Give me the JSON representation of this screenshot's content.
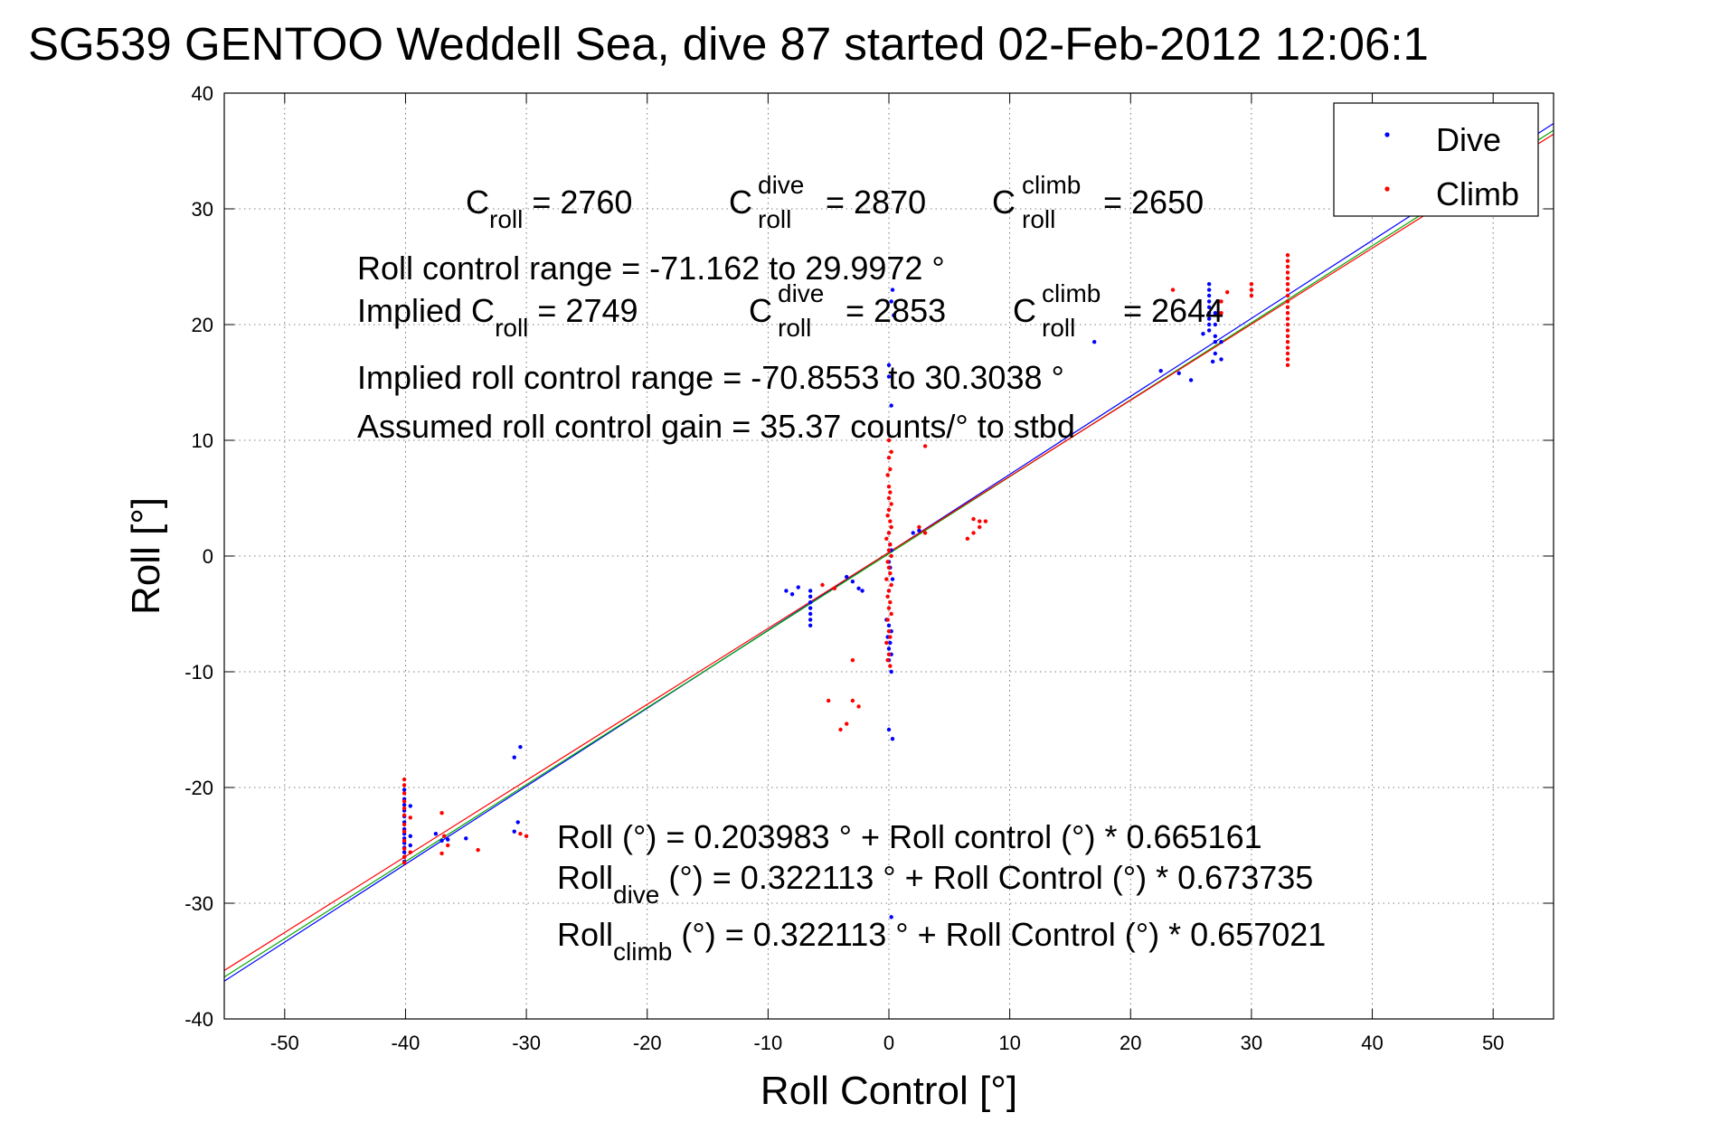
{
  "chart_data": {
    "type": "scatter",
    "title": "SG539 GENTOO Weddell Sea, dive 87 started 02-Feb-2012 12:06:1",
    "xlabel": "Roll Control [°]",
    "ylabel": "Roll [°]",
    "xlim": [
      -55,
      55
    ],
    "ylim": [
      -40,
      40
    ],
    "xticks": [
      -50,
      -40,
      -30,
      -20,
      -10,
      0,
      10,
      20,
      30,
      40,
      50
    ],
    "yticks": [
      -40,
      -30,
      -20,
      -10,
      0,
      10,
      20,
      30,
      40
    ],
    "grid": true,
    "legend": "top-right",
    "colors": {
      "dive": "#0000ff",
      "climb": "#ff0000",
      "fit_green": "#00aa00",
      "axes": "#000000"
    },
    "series": [
      {
        "name": "Dive",
        "points": [
          [
            -40.1,
            -23.6
          ],
          [
            -40.1,
            -24.0
          ],
          [
            -40.1,
            -24.4
          ],
          [
            -40.1,
            -24.8
          ],
          [
            -40.1,
            -25.2
          ],
          [
            -40.1,
            -25.6
          ],
          [
            -40.1,
            -26.0
          ],
          [
            -40.1,
            -26.4
          ],
          [
            -40.1,
            -21.0
          ],
          [
            -40.1,
            -21.5
          ],
          [
            -40.1,
            -22.0
          ],
          [
            -40.1,
            -22.5
          ],
          [
            -40.1,
            -23.0
          ],
          [
            -40.1,
            -20.2
          ],
          [
            -39.6,
            -24.2
          ],
          [
            -39.6,
            -25.0
          ],
          [
            -39.6,
            -21.6
          ],
          [
            -37.5,
            -24.0
          ],
          [
            -37.0,
            -24.6
          ],
          [
            -36.5,
            -24.5
          ],
          [
            -35.0,
            -24.4
          ],
          [
            -31.0,
            -17.4
          ],
          [
            -30.5,
            -16.5
          ],
          [
            -31.0,
            -23.8
          ],
          [
            -30.7,
            -23.0
          ],
          [
            -8.5,
            -3.0
          ],
          [
            -8.0,
            -3.3
          ],
          [
            -7.5,
            -2.7
          ],
          [
            -6.5,
            -3.0
          ],
          [
            -6.5,
            -3.5
          ],
          [
            -6.5,
            -4.0
          ],
          [
            -6.5,
            -4.5
          ],
          [
            -6.5,
            -5.0
          ],
          [
            -6.5,
            -5.5
          ],
          [
            -6.5,
            -6.0
          ],
          [
            -3.5,
            -1.8
          ],
          [
            -3.0,
            -2.2
          ],
          [
            -2.5,
            -2.8
          ],
          [
            -2.2,
            -3.0
          ],
          [
            -0.2,
            -5.5
          ],
          [
            0.0,
            -6.0
          ],
          [
            0.2,
            -6.5
          ],
          [
            -0.1,
            -7.0
          ],
          [
            0.1,
            -7.5
          ],
          [
            0.0,
            -8.0
          ],
          [
            0.2,
            -8.5
          ],
          [
            0.0,
            -9.0
          ],
          [
            0.2,
            -10.0
          ],
          [
            0.0,
            -15.0
          ],
          [
            0.3,
            -15.8
          ],
          [
            0.2,
            -31.2
          ],
          [
            0.0,
            -0.5
          ],
          [
            0.1,
            -1.0
          ],
          [
            0.3,
            -2.0
          ],
          [
            0.0,
            -3.0
          ],
          [
            0.2,
            0.5
          ],
          [
            0.1,
            1.0
          ],
          [
            0.0,
            2.0
          ],
          [
            0.3,
            23.0
          ],
          [
            0.2,
            22.0
          ],
          [
            0.4,
            20.8
          ],
          [
            0.0,
            15.5
          ],
          [
            0.2,
            13.0
          ],
          [
            0.0,
            16.5
          ],
          [
            2.0,
            2.0
          ],
          [
            2.5,
            2.2
          ],
          [
            17.0,
            18.5
          ],
          [
            22.5,
            16.0
          ],
          [
            24.0,
            15.8
          ],
          [
            25.0,
            15.2
          ],
          [
            26.5,
            23.5
          ],
          [
            26.5,
            23.0
          ],
          [
            26.5,
            22.5
          ],
          [
            26.5,
            22.0
          ],
          [
            26.5,
            21.5
          ],
          [
            26.5,
            21.0
          ],
          [
            26.5,
            20.5
          ],
          [
            26.5,
            20.0
          ],
          [
            26.5,
            19.5
          ],
          [
            27.0,
            21.0
          ],
          [
            27.0,
            20.0
          ],
          [
            27.0,
            19.0
          ],
          [
            27.0,
            18.5
          ],
          [
            27.0,
            17.5
          ],
          [
            26.8,
            16.8
          ],
          [
            27.5,
            17.0
          ],
          [
            27.5,
            18.5
          ],
          [
            26.0,
            19.2
          ]
        ]
      },
      {
        "name": "Climb",
        "points": [
          [
            -40.1,
            -19.3
          ],
          [
            -40.1,
            -19.8
          ],
          [
            -40.1,
            -20.5
          ],
          [
            -40.1,
            -21.2
          ],
          [
            -40.1,
            -21.8
          ],
          [
            -40.1,
            -22.4
          ],
          [
            -40.1,
            -23.2
          ],
          [
            -40.1,
            -23.8
          ],
          [
            -40.1,
            -24.6
          ],
          [
            -40.1,
            -25.3
          ],
          [
            -40.1,
            -26.0
          ],
          [
            -40.1,
            -26.5
          ],
          [
            -39.6,
            -22.6
          ],
          [
            -39.6,
            -25.6
          ],
          [
            -37.0,
            -22.2
          ],
          [
            -36.8,
            -24.2
          ],
          [
            -36.5,
            -25.0
          ],
          [
            -37.0,
            -25.7
          ],
          [
            -34.0,
            -25.4
          ],
          [
            -30.5,
            -24.0
          ],
          [
            -30.0,
            -24.2
          ],
          [
            -5.5,
            -2.5
          ],
          [
            -4.5,
            -2.8
          ],
          [
            -4.0,
            -15.0
          ],
          [
            -3.5,
            -14.5
          ],
          [
            -5.0,
            -12.5
          ],
          [
            -3.0,
            -12.5
          ],
          [
            -2.5,
            -13.0
          ],
          [
            -3.0,
            -9.0
          ],
          [
            0.1,
            -9.5
          ],
          [
            -0.1,
            -9.0
          ],
          [
            0.0,
            -8.5
          ],
          [
            -0.2,
            -7.5
          ],
          [
            0.1,
            -7.0
          ],
          [
            0.0,
            -6.5
          ],
          [
            -0.1,
            -5.5
          ],
          [
            0.2,
            -5.0
          ],
          [
            0.0,
            -4.5
          ],
          [
            0.1,
            -4.0
          ],
          [
            -0.1,
            -3.5
          ],
          [
            0.0,
            -3.0
          ],
          [
            0.2,
            -2.5
          ],
          [
            -0.2,
            -2.0
          ],
          [
            0.1,
            -1.5
          ],
          [
            0.0,
            -1.0
          ],
          [
            -0.1,
            -0.5
          ],
          [
            0.2,
            0.0
          ],
          [
            0.0,
            0.5
          ],
          [
            0.1,
            1.0
          ],
          [
            -0.2,
            1.5
          ],
          [
            0.0,
            2.0
          ],
          [
            0.2,
            2.5
          ],
          [
            0.1,
            3.0
          ],
          [
            -0.1,
            3.5
          ],
          [
            0.0,
            4.0
          ],
          [
            0.2,
            4.5
          ],
          [
            0.0,
            5.0
          ],
          [
            0.1,
            5.5
          ],
          [
            0.0,
            6.0
          ],
          [
            -0.1,
            7.0
          ],
          [
            0.1,
            7.5
          ],
          [
            0.0,
            8.5
          ],
          [
            0.2,
            9.0
          ],
          [
            0.0,
            10.0
          ],
          [
            2.5,
            2.5
          ],
          [
            3.0,
            2.0
          ],
          [
            3.0,
            9.5
          ],
          [
            7.0,
            3.2
          ],
          [
            7.5,
            3.0
          ],
          [
            7.0,
            2.0
          ],
          [
            6.5,
            1.5
          ],
          [
            7.5,
            2.5
          ],
          [
            8.0,
            3.0
          ],
          [
            23.5,
            23.0
          ],
          [
            27.5,
            21.0
          ],
          [
            28.0,
            22.8
          ],
          [
            27.5,
            22.0
          ],
          [
            30.0,
            22.5
          ],
          [
            30.0,
            23.0
          ],
          [
            30.0,
            23.5
          ],
          [
            33.0,
            26.0
          ],
          [
            33.0,
            25.5
          ],
          [
            33.0,
            25.0
          ],
          [
            33.0,
            24.5
          ],
          [
            33.0,
            24.0
          ],
          [
            33.0,
            23.5
          ],
          [
            33.0,
            23.0
          ],
          [
            33.0,
            22.5
          ],
          [
            33.0,
            22.0
          ],
          [
            33.0,
            21.5
          ],
          [
            33.0,
            21.0
          ],
          [
            33.0,
            20.5
          ],
          [
            33.0,
            20.0
          ],
          [
            33.0,
            19.5
          ],
          [
            33.0,
            19.0
          ],
          [
            33.0,
            18.5
          ],
          [
            33.0,
            18.0
          ],
          [
            33.0,
            17.5
          ],
          [
            33.0,
            17.0
          ],
          [
            33.0,
            16.5
          ]
        ]
      }
    ],
    "fit_lines": [
      {
        "color": "#0000ff",
        "intercept": 0.322113,
        "slope": 0.673735
      },
      {
        "color": "#00aa00",
        "intercept": 0.203983,
        "slope": 0.665161
      },
      {
        "color": "#ff0000",
        "intercept": 0.322113,
        "slope": 0.657021
      }
    ],
    "annotations": {
      "c_roll": {
        "base": "C",
        "sub": "roll",
        "value": " = 2760"
      },
      "c_roll_dive": {
        "base": "C",
        "sup": "dive",
        "sub": "roll",
        "value": " = 2870"
      },
      "c_roll_climb": {
        "base": "C",
        "sup": "climb",
        "sub": "roll",
        "value": " = 2650"
      },
      "range_line": "Roll control range = -71.162 to 29.9972 °",
      "implied_label": "Implied C",
      "implied_sub": "roll",
      "implied_value": " = 2749",
      "implied_dive": {
        "base": "C",
        "sup": "dive",
        "sub": "roll",
        "value": " = 2853"
      },
      "implied_climb": {
        "base": "C",
        "sup": "climb",
        "sub": "roll",
        "value": " = 2644"
      },
      "implied_range": "Implied roll control range = -70.8553 to 30.3038 °",
      "gain_line": "Assumed roll control gain = 35.37 counts/° to stbd",
      "eq_all": "Roll (°) = 0.203983 ° + Roll control (°) * 0.665161",
      "eq_dive": {
        "base": "Roll",
        "sub": "dive",
        "rest": " (°) = 0.322113 ° + Roll Control (°) * 0.673735"
      },
      "eq_climb": {
        "base": "Roll",
        "sub": "climb",
        "rest": " (°) = 0.322113 ° + Roll Control (°) * 0.657021"
      }
    }
  }
}
